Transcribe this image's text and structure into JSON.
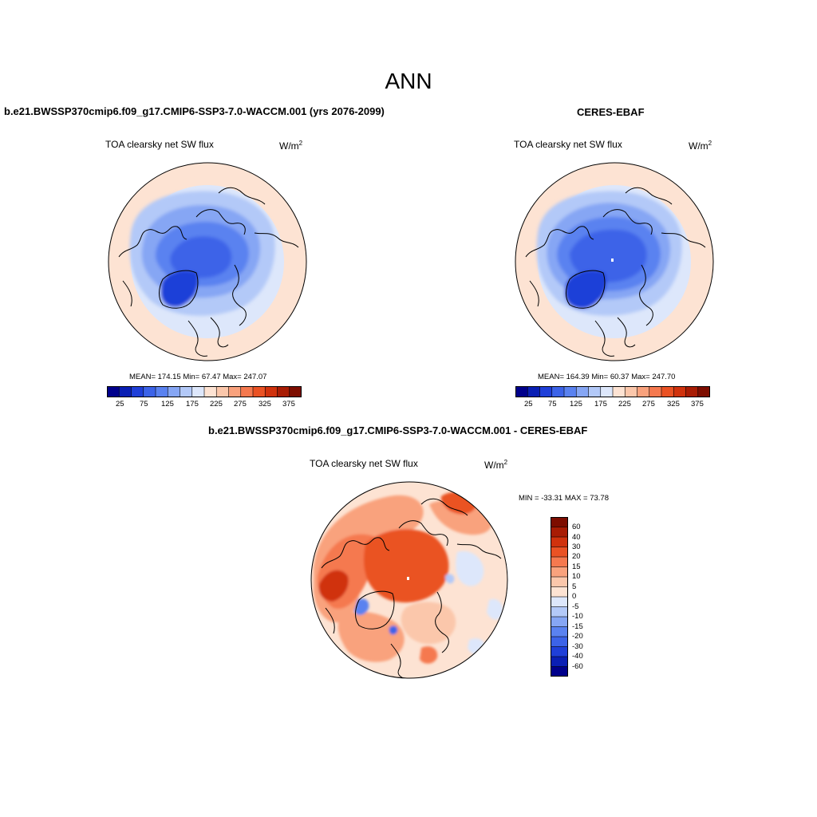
{
  "title": "ANN",
  "colors": {
    "abs_scale": [
      "#00008b",
      "#0a1fb4",
      "#1f3fd8",
      "#3c63e8",
      "#5a82f0",
      "#86a6f4",
      "#b3c9f8",
      "#dde7fb",
      "#fde3d3",
      "#fbc7ab",
      "#f9a27d",
      "#f5794f",
      "#ea5224",
      "#d0320d",
      "#a81c04",
      "#7d0d00"
    ],
    "diff_scale": [
      "#00008b",
      "#0a1fb4",
      "#1f3fd8",
      "#3c63e8",
      "#5a82f0",
      "#86a6f4",
      "#b3c9f8",
      "#dde7fb",
      "#fde3d3",
      "#fbc7ab",
      "#f9a27d",
      "#f5794f",
      "#ea5224",
      "#d0320d",
      "#a81c04",
      "#7d0d00"
    ]
  },
  "panels": {
    "model": {
      "case_title": "b.e21.BWSSP370cmip6.f09_g17.CMIP6-SSP3-7.0-WACCM.001 (yrs 2076-2099)",
      "variable": "TOA clearsky net SW flux",
      "units": "W/m",
      "units_sup": "2",
      "stats": "MEAN= 174.15  Min=  67.47  Max= 247.07",
      "colorbar_ticks": [
        "25",
        "75",
        "125",
        "175",
        "225",
        "275",
        "325",
        "375"
      ]
    },
    "obs": {
      "case_title": "CERES-EBAF",
      "variable": "TOA clearsky net SW flux",
      "units": "W/m",
      "units_sup": "2",
      "stats": "MEAN=  164.39  Min=  60.37  Max= 247.70",
      "colorbar_ticks": [
        "25",
        "75",
        "125",
        "175",
        "225",
        "275",
        "325",
        "375"
      ]
    },
    "diff": {
      "case_title": "b.e21.BWSSP370cmip6.f09_g17.CMIP6-SSP3-7.0-WACCM.001 - CERES-EBAF",
      "variable": "TOA clearsky net SW flux",
      "units": "W/m",
      "units_sup": "2",
      "stats": "MIN = -33.31 MAX =  73.78",
      "colorbar_labels": [
        "60",
        "40",
        "30",
        "20",
        "15",
        "10",
        "5",
        "0",
        "-5",
        "-10",
        "-15",
        "-20",
        "-30",
        "-40",
        "-60"
      ]
    }
  }
}
